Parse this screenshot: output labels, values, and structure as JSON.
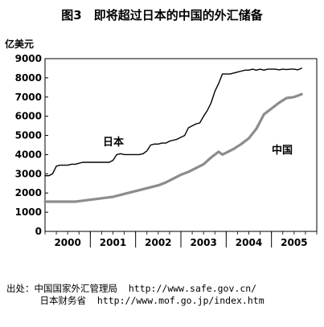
{
  "title": "图3　即将超过日本的中国的外汇储备",
  "source_lines": [
    {
      "label": "出处：中国国家外汇管理局",
      "url": "http://www.safe.gov.cn/"
    },
    {
      "label": "日本财务省",
      "url": "http://www.mof.go.jp/index.htm"
    }
  ],
  "chart_data": {
    "type": "line",
    "title": "图3　即将超过日本的中国的外汇储备",
    "ylabel": "亿美元",
    "xlabel": "",
    "ylim": [
      0,
      9000
    ],
    "yticks": [
      0,
      1000,
      2000,
      3000,
      4000,
      5000,
      6000,
      7000,
      8000,
      9000
    ],
    "xlim": [
      0,
      72
    ],
    "xticks": [
      {
        "label": "2000",
        "x": 6
      },
      {
        "label": "2001",
        "x": 18
      },
      {
        "label": "2002",
        "x": 30
      },
      {
        "label": "2003",
        "x": 42
      },
      {
        "label": "2004",
        "x": 54
      },
      {
        "label": "2005",
        "x": 66
      }
    ],
    "x_unit": "months since Jan 2000",
    "grid": false,
    "series": [
      {
        "name": "日本",
        "color": "#000000",
        "x": [
          0,
          1,
          2,
          3,
          4,
          5,
          6,
          7,
          8,
          9,
          10,
          11,
          12,
          13,
          14,
          15,
          16,
          17,
          18,
          19,
          20,
          21,
          22,
          23,
          24,
          25,
          26,
          27,
          28,
          29,
          30,
          31,
          32,
          33,
          34,
          35,
          36,
          37,
          38,
          39,
          40,
          41,
          42,
          43,
          44,
          45,
          46,
          47,
          48,
          49,
          50,
          51,
          52,
          53,
          54,
          55,
          56,
          57,
          58,
          59,
          60,
          61,
          62,
          63,
          64,
          65,
          66,
          67,
          68
        ],
        "values": [
          2900,
          2900,
          3000,
          3400,
          3450,
          3450,
          3450,
          3500,
          3500,
          3550,
          3600,
          3600,
          3600,
          3600,
          3600,
          3600,
          3600,
          3600,
          3700,
          4000,
          4050,
          4000,
          4000,
          4000,
          4000,
          4000,
          4050,
          4200,
          4500,
          4550,
          4550,
          4600,
          4600,
          4700,
          4750,
          4800,
          4900,
          5000,
          5400,
          5500,
          5600,
          5650,
          6000,
          6300,
          6700,
          7300,
          7700,
          8200,
          8200,
          8200,
          8250,
          8300,
          8350,
          8400,
          8400,
          8450,
          8400,
          8450,
          8400,
          8450,
          8450,
          8450,
          8420,
          8450,
          8430,
          8450,
          8450,
          8420,
          8500
        ]
      },
      {
        "name": "中国",
        "color": "#8c8c8c",
        "x": [
          0,
          4,
          8,
          10,
          12,
          14,
          16,
          18,
          20,
          22,
          24,
          26,
          28,
          30,
          32,
          34,
          36,
          38,
          40,
          42,
          44,
          46,
          47,
          48,
          50,
          52,
          54,
          56,
          58,
          60,
          62,
          64,
          66,
          68
        ],
        "values": [
          1550,
          1550,
          1550,
          1600,
          1650,
          1700,
          1750,
          1800,
          1900,
          2000,
          2100,
          2200,
          2300,
          2400,
          2550,
          2750,
          2950,
          3100,
          3300,
          3500,
          3850,
          4150,
          4000,
          4100,
          4300,
          4550,
          4850,
          5350,
          6100,
          6400,
          6700,
          6950,
          7000,
          7150
        ]
      }
    ],
    "annotations": [
      {
        "text": "日本",
        "near_series": "日本"
      },
      {
        "text": "中国",
        "near_series": "中国"
      }
    ]
  }
}
